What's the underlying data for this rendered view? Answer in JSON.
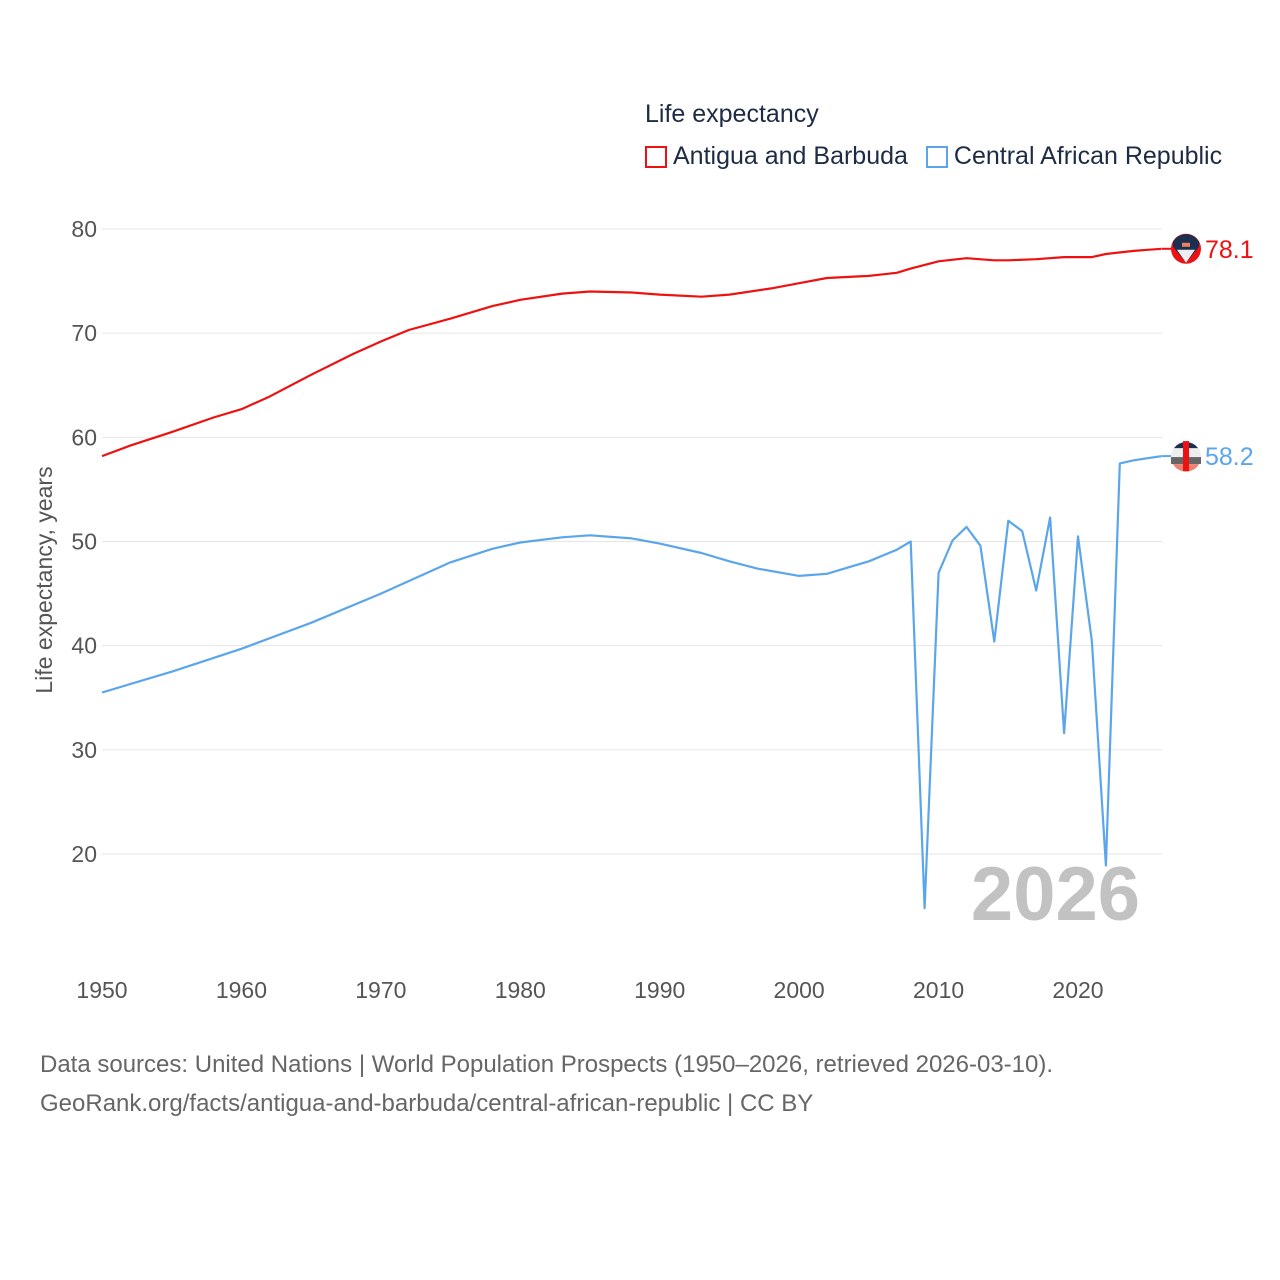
{
  "chart_data": {
    "type": "line",
    "title": "Life expectancy",
    "ylabel": "Life expectancy, years",
    "xlabel": "",
    "xlim": [
      1950,
      2026
    ],
    "ylim": [
      10.5,
      82
    ],
    "x_ticks": [
      1950,
      1960,
      1970,
      1980,
      1990,
      2000,
      2010,
      2020
    ],
    "y_ticks": [
      20,
      30,
      40,
      50,
      60,
      70,
      80
    ],
    "grid": true,
    "legend_position": "top-right",
    "year_watermark": "2026",
    "series": [
      {
        "name": "Antigua and Barbuda",
        "color": "#ee1111",
        "end_label": "78.1",
        "x": [
          1950,
          1952,
          1955,
          1958,
          1960,
          1962,
          1965,
          1968,
          1970,
          1972,
          1975,
          1978,
          1980,
          1983,
          1985,
          1988,
          1990,
          1993,
          1995,
          1998,
          2000,
          2002,
          2005,
          2007,
          2008,
          2010,
          2012,
          2014,
          2015,
          2017,
          2019,
          2021,
          2022,
          2024,
          2025,
          2026
        ],
        "values": [
          58.2,
          59.2,
          60.5,
          61.9,
          62.7,
          63.9,
          66.0,
          68.0,
          69.2,
          70.3,
          71.4,
          72.6,
          73.2,
          73.8,
          74.0,
          73.9,
          73.7,
          73.5,
          73.7,
          74.3,
          74.8,
          75.3,
          75.5,
          75.8,
          76.2,
          76.9,
          77.2,
          77.0,
          77.0,
          77.1,
          77.3,
          77.3,
          77.6,
          77.9,
          78.0,
          78.1
        ]
      },
      {
        "name": "Central African Republic",
        "color": "#5ba6ea",
        "end_label": "58.2",
        "x": [
          1950,
          1955,
          1960,
          1965,
          1970,
          1975,
          1978,
          1980,
          1983,
          1985,
          1988,
          1990,
          1993,
          1995,
          1997,
          2000,
          2002,
          2003,
          2005,
          2007,
          2008,
          2009,
          2010,
          2011,
          2012,
          2013,
          2014,
          2015,
          2016,
          2017,
          2018,
          2019,
          2020,
          2021,
          2022,
          2023,
          2024,
          2025,
          2026
        ],
        "values": [
          35.5,
          37.5,
          39.7,
          42.2,
          45.0,
          48.0,
          49.3,
          49.9,
          50.4,
          50.6,
          50.3,
          49.8,
          48.9,
          48.1,
          47.4,
          46.7,
          46.9,
          47.3,
          48.1,
          49.2,
          50.0,
          14.8,
          47.0,
          50.1,
          51.4,
          49.6,
          40.4,
          52.0,
          51.0,
          45.3,
          52.3,
          31.6,
          50.5,
          40.4,
          18.9,
          57.5,
          57.8,
          58.0,
          58.2
        ]
      }
    ]
  },
  "footer": {
    "line1": "Data sources: United Nations | World Population Prospects (1950–2026, retrieved 2026-03-10).",
    "line2": "GeoRank.org/facts/antigua-and-barbuda/central-african-republic | CC BY"
  }
}
